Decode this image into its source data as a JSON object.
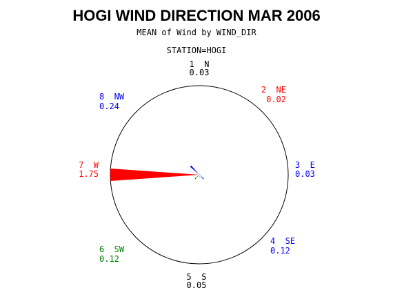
{
  "chart_data": {
    "type": "pie",
    "title": "HOGI WIND DIRECTION MAR 2006",
    "subtitle": "MEAN of Wind by WIND_DIR",
    "station_label": "STATION=HOGI",
    "directions": [
      {
        "label": "1  N",
        "value": 0.03,
        "display": "0.03",
        "color": "#000000"
      },
      {
        "label": "2  NE",
        "value": 0.02,
        "display": "0.02",
        "color": "#ff0000"
      },
      {
        "label": "3  E",
        "value": 0.03,
        "display": "0.03",
        "color": "#0000ff"
      },
      {
        "label": "4  SE",
        "value": 0.12,
        "display": "0.12",
        "color": "#0000ff"
      },
      {
        "label": "5  S",
        "value": 0.05,
        "display": "0.05",
        "color": "#000000"
      },
      {
        "label": "6  SW",
        "value": 0.12,
        "display": "0.12",
        "color": "#008000"
      },
      {
        "label": "7  W",
        "value": 1.75,
        "display": "1.75",
        "color": "#ff0000"
      },
      {
        "label": "8  NW",
        "value": 0.24,
        "display": "0.24",
        "color": "#0000ff"
      }
    ]
  }
}
